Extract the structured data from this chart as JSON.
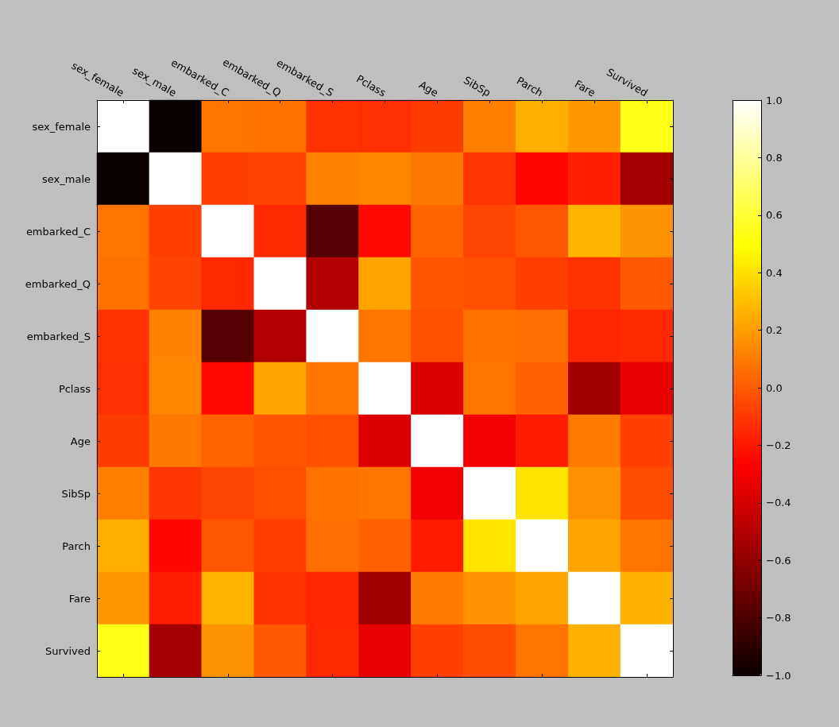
{
  "chart_data": {
    "type": "heatmap",
    "categories": [
      "sex_female",
      "sex_male",
      "embarked_C",
      "embarked_Q",
      "embarked_S",
      "Pclass",
      "Age",
      "SibSp",
      "Parch",
      "Fare",
      "Survived"
    ],
    "y_categories": [
      "sex_female",
      "sex_male",
      "embarked_C",
      "embarked_Q",
      "embarked_S",
      "Pclass",
      "Age",
      "SibSp",
      "Parch",
      "Fare",
      "Survived"
    ],
    "cells": [
      [
        1,
        -1,
        0.08,
        0.07,
        -0.12,
        -0.13,
        -0.09,
        0.11,
        0.25,
        0.18,
        0.54
      ],
      [
        -1,
        1,
        -0.08,
        -0.07,
        0.12,
        0.13,
        0.09,
        -0.11,
        -0.25,
        -0.18,
        -0.54
      ],
      [
        0.08,
        -0.08,
        1,
        -0.15,
        -0.78,
        -0.24,
        0.03,
        -0.06,
        -0.01,
        0.27,
        0.17
      ],
      [
        0.07,
        -0.07,
        -0.15,
        1,
        -0.5,
        0.22,
        -0.02,
        -0.03,
        -0.08,
        -0.12,
        0
      ],
      [
        -0.12,
        0.12,
        -0.78,
        -0.5,
        1,
        0.08,
        -0.03,
        0.07,
        0.06,
        -0.16,
        -0.15
      ],
      [
        -0.13,
        0.13,
        -0.24,
        0.22,
        0.08,
        1,
        -0.37,
        0.08,
        0.02,
        -0.55,
        -0.34
      ],
      [
        -0.09,
        0.09,
        0.03,
        -0.02,
        -0.03,
        -0.37,
        1,
        -0.31,
        -0.19,
        0.1,
        -0.08
      ],
      [
        0.11,
        -0.11,
        -0.06,
        -0.03,
        0.07,
        0.08,
        -0.31,
        1,
        0.41,
        0.16,
        -0.04
      ],
      [
        0.25,
        -0.25,
        -0.01,
        -0.08,
        0.06,
        0.02,
        -0.19,
        0.41,
        1,
        0.22,
        0.08
      ],
      [
        0.18,
        -0.18,
        0.27,
        -0.12,
        -0.16,
        -0.55,
        0.1,
        0.16,
        0.22,
        1,
        0.26
      ],
      [
        0.54,
        -0.54,
        0.17,
        0,
        -0.15,
        -0.34,
        -0.08,
        -0.04,
        0.08,
        0.26,
        1
      ]
    ],
    "clim": [
      -1,
      1
    ],
    "cticks": [
      {
        "value": -1,
        "label": "−1.0"
      },
      {
        "value": -0.8,
        "label": "−0.8"
      },
      {
        "value": -0.6,
        "label": "−0.6"
      },
      {
        "value": -0.4,
        "label": "−0.4"
      },
      {
        "value": -0.2,
        "label": "−0.2"
      },
      {
        "value": 0,
        "label": "0.0"
      },
      0.2,
      0.4,
      0.6,
      0.8,
      {
        "value": 1,
        "label": "1.0"
      }
    ]
  }
}
